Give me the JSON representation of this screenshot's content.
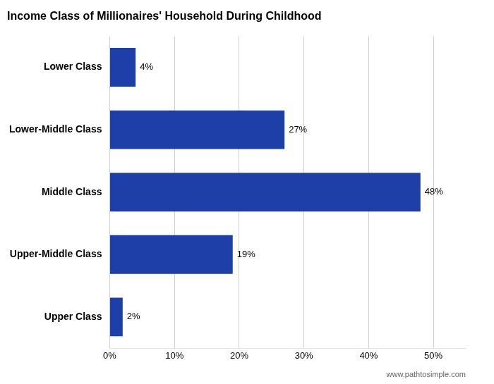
{
  "chart_data": {
    "type": "bar",
    "orientation": "horizontal",
    "title": "Income Class of Millionaires' Household During Childhood",
    "categories": [
      "Lower Class",
      "Lower-Middle Class",
      "Middle Class",
      "Upper-Middle Class",
      "Upper Class"
    ],
    "values": [
      4,
      27,
      48,
      19,
      2
    ],
    "value_labels": [
      "4%",
      "27%",
      "48%",
      "19%",
      "2%"
    ],
    "data_labels": true,
    "color": "#1f3fa8",
    "xlim": [
      0,
      55
    ],
    "xticks": [
      {
        "value": 0,
        "label": "0%"
      },
      {
        "value": 10,
        "label": "10%"
      },
      {
        "value": 20,
        "label": "20%"
      },
      {
        "value": 30,
        "label": "30%"
      },
      {
        "value": 40,
        "label": "40%"
      },
      {
        "value": 50,
        "label": "50%"
      }
    ],
    "grid": true,
    "annotations": [
      "www.pathtosimple.com"
    ]
  }
}
